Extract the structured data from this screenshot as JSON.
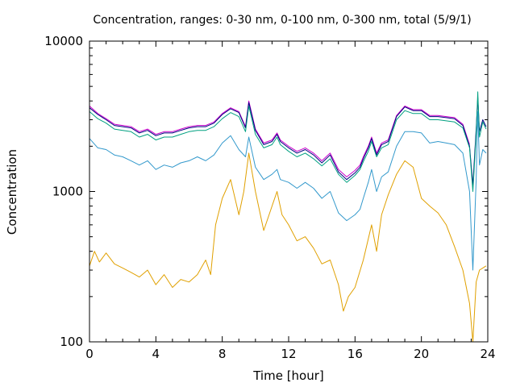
{
  "chart_data": {
    "type": "line",
    "title": "Concentration, ranges: 0-30 nm, 0-100 nm, 0-300 nm, total (5/9/1)",
    "xlabel": "Time [hour]",
    "ylabel": "Concentration",
    "xlim": [
      0,
      24
    ],
    "ylim": [
      100,
      10000
    ],
    "yscale": "log",
    "grid": false,
    "legend": "none",
    "x_ticks": [
      "0",
      "4",
      "8",
      "12",
      "16",
      "20",
      "24"
    ],
    "y_ticks": [
      "100",
      "1000",
      "10000"
    ],
    "series": [
      {
        "color": "#cc00cc",
        "points": [
          [
            0,
            3700
          ],
          [
            0.5,
            3300
          ],
          [
            1,
            3050
          ],
          [
            1.5,
            2800
          ],
          [
            2,
            2750
          ],
          [
            2.5,
            2700
          ],
          [
            3,
            2500
          ],
          [
            3.5,
            2600
          ],
          [
            4,
            2400
          ],
          [
            4.5,
            2500
          ],
          [
            5,
            2500
          ],
          [
            5.5,
            2600
          ],
          [
            6,
            2700
          ],
          [
            6.5,
            2750
          ],
          [
            7,
            2750
          ],
          [
            7.5,
            2900
          ],
          [
            8,
            3300
          ],
          [
            8.5,
            3600
          ],
          [
            9,
            3400
          ],
          [
            9.4,
            2700
          ],
          [
            9.6,
            4000
          ],
          [
            10,
            2600
          ],
          [
            10.5,
            2100
          ],
          [
            11,
            2200
          ],
          [
            11.3,
            2450
          ],
          [
            11.5,
            2200
          ],
          [
            12,
            2000
          ],
          [
            12.5,
            1850
          ],
          [
            13,
            1950
          ],
          [
            13.5,
            1800
          ],
          [
            14,
            1600
          ],
          [
            14.5,
            1800
          ],
          [
            15,
            1400
          ],
          [
            15.5,
            1250
          ],
          [
            16,
            1380
          ],
          [
            16.3,
            1500
          ],
          [
            16.5,
            1700
          ],
          [
            16.8,
            2000
          ],
          [
            17,
            2300
          ],
          [
            17.3,
            1800
          ],
          [
            17.6,
            2100
          ],
          [
            18,
            2200
          ],
          [
            18.5,
            3200
          ],
          [
            19,
            3700
          ],
          [
            19.5,
            3500
          ],
          [
            20,
            3500
          ],
          [
            20.5,
            3200
          ],
          [
            21,
            3200
          ],
          [
            21.5,
            3150
          ],
          [
            22,
            3100
          ],
          [
            22.5,
            2800
          ],
          [
            22.9,
            2050
          ]
        ]
      },
      {
        "color": "#000080",
        "points": [
          [
            0,
            3600
          ],
          [
            0.5,
            3250
          ],
          [
            1,
            3000
          ],
          [
            1.5,
            2750
          ],
          [
            2,
            2700
          ],
          [
            2.5,
            2650
          ],
          [
            3,
            2450
          ],
          [
            3.5,
            2550
          ],
          [
            4,
            2350
          ],
          [
            4.5,
            2450
          ],
          [
            5,
            2450
          ],
          [
            5.5,
            2550
          ],
          [
            6,
            2650
          ],
          [
            6.5,
            2700
          ],
          [
            7,
            2700
          ],
          [
            7.5,
            2850
          ],
          [
            8,
            3250
          ],
          [
            8.5,
            3550
          ],
          [
            9,
            3350
          ],
          [
            9.4,
            2650
          ],
          [
            9.6,
            3900
          ],
          [
            10,
            2550
          ],
          [
            10.5,
            2050
          ],
          [
            11,
            2150
          ],
          [
            11.3,
            2400
          ],
          [
            11.5,
            2150
          ],
          [
            12,
            1950
          ],
          [
            12.5,
            1800
          ],
          [
            13,
            1900
          ],
          [
            13.5,
            1750
          ],
          [
            14,
            1550
          ],
          [
            14.5,
            1750
          ],
          [
            15,
            1350
          ],
          [
            15.5,
            1200
          ],
          [
            16,
            1330
          ],
          [
            16.3,
            1450
          ],
          [
            16.5,
            1650
          ],
          [
            16.8,
            1950
          ],
          [
            17,
            2250
          ],
          [
            17.3,
            1750
          ],
          [
            17.6,
            2050
          ],
          [
            18,
            2150
          ],
          [
            18.5,
            3150
          ],
          [
            19,
            3650
          ],
          [
            19.5,
            3450
          ],
          [
            20,
            3450
          ],
          [
            20.5,
            3150
          ],
          [
            21,
            3150
          ],
          [
            21.5,
            3100
          ],
          [
            22,
            3050
          ],
          [
            22.5,
            2750
          ],
          [
            22.9,
            2000
          ],
          [
            23.1,
            1100
          ],
          [
            23.3,
            2600
          ],
          [
            23.4,
            4200
          ],
          [
            23.5,
            2500
          ],
          [
            23.7,
            3000
          ],
          [
            23.9,
            2700
          ]
        ]
      },
      {
        "color": "#00a080",
        "points": [
          [
            0,
            3400
          ],
          [
            0.5,
            3050
          ],
          [
            1,
            2850
          ],
          [
            1.5,
            2600
          ],
          [
            2,
            2550
          ],
          [
            2.5,
            2500
          ],
          [
            3,
            2300
          ],
          [
            3.5,
            2400
          ],
          [
            4,
            2200
          ],
          [
            4.5,
            2300
          ],
          [
            5,
            2300
          ],
          [
            5.5,
            2400
          ],
          [
            6,
            2500
          ],
          [
            6.5,
            2550
          ],
          [
            7,
            2550
          ],
          [
            7.5,
            2700
          ],
          [
            8,
            3050
          ],
          [
            8.5,
            3350
          ],
          [
            9,
            3150
          ],
          [
            9.4,
            2500
          ],
          [
            9.6,
            3700
          ],
          [
            10,
            2400
          ],
          [
            10.5,
            1950
          ],
          [
            11,
            2050
          ],
          [
            11.3,
            2300
          ],
          [
            11.5,
            2050
          ],
          [
            12,
            1850
          ],
          [
            12.5,
            1700
          ],
          [
            13,
            1800
          ],
          [
            13.5,
            1650
          ],
          [
            14,
            1480
          ],
          [
            14.5,
            1650
          ],
          [
            15,
            1300
          ],
          [
            15.5,
            1150
          ],
          [
            16,
            1280
          ],
          [
            16.3,
            1400
          ],
          [
            16.5,
            1580
          ],
          [
            16.8,
            1850
          ],
          [
            17,
            2150
          ],
          [
            17.3,
            1700
          ],
          [
            17.6,
            1950
          ],
          [
            18,
            2050
          ],
          [
            18.5,
            3000
          ],
          [
            19,
            3450
          ],
          [
            19.5,
            3300
          ],
          [
            20,
            3300
          ],
          [
            20.5,
            3000
          ],
          [
            21,
            3000
          ],
          [
            21.5,
            2950
          ],
          [
            22,
            2900
          ],
          [
            22.5,
            2650
          ],
          [
            22.9,
            1950
          ],
          [
            23.1,
            1000
          ],
          [
            23.3,
            2400
          ],
          [
            23.4,
            4600
          ],
          [
            23.5,
            2300
          ],
          [
            23.7,
            2900
          ],
          [
            23.9,
            2600
          ]
        ]
      },
      {
        "color": "#3399cc",
        "points": [
          [
            0,
            2250
          ],
          [
            0.5,
            1950
          ],
          [
            1,
            1900
          ],
          [
            1.5,
            1750
          ],
          [
            2,
            1700
          ],
          [
            2.5,
            1600
          ],
          [
            3,
            1500
          ],
          [
            3.5,
            1600
          ],
          [
            4,
            1400
          ],
          [
            4.5,
            1500
          ],
          [
            5,
            1450
          ],
          [
            5.5,
            1550
          ],
          [
            6,
            1600
          ],
          [
            6.5,
            1700
          ],
          [
            7,
            1600
          ],
          [
            7.5,
            1750
          ],
          [
            8,
            2100
          ],
          [
            8.5,
            2350
          ],
          [
            9,
            1900
          ],
          [
            9.4,
            1700
          ],
          [
            9.6,
            2300
          ],
          [
            10,
            1450
          ],
          [
            10.5,
            1200
          ],
          [
            11,
            1300
          ],
          [
            11.3,
            1400
          ],
          [
            11.5,
            1200
          ],
          [
            12,
            1150
          ],
          [
            12.5,
            1050
          ],
          [
            13,
            1150
          ],
          [
            13.5,
            1050
          ],
          [
            14,
            900
          ],
          [
            14.5,
            1000
          ],
          [
            15,
            720
          ],
          [
            15.5,
            640
          ],
          [
            16,
            700
          ],
          [
            16.3,
            760
          ],
          [
            16.5,
            900
          ],
          [
            16.8,
            1150
          ],
          [
            17,
            1400
          ],
          [
            17.3,
            1000
          ],
          [
            17.6,
            1250
          ],
          [
            18,
            1350
          ],
          [
            18.5,
            2000
          ],
          [
            19,
            2500
          ],
          [
            19.5,
            2500
          ],
          [
            20,
            2450
          ],
          [
            20.5,
            2100
          ],
          [
            21,
            2150
          ],
          [
            21.5,
            2100
          ],
          [
            22,
            2050
          ],
          [
            22.5,
            1800
          ],
          [
            22.9,
            1000
          ],
          [
            23.1,
            300
          ],
          [
            23.3,
            1200
          ],
          [
            23.4,
            3400
          ],
          [
            23.5,
            1500
          ],
          [
            23.7,
            1900
          ],
          [
            23.9,
            1800
          ]
        ]
      },
      {
        "color": "#e0a000",
        "points": [
          [
            0,
            320
          ],
          [
            0.3,
            400
          ],
          [
            0.6,
            340
          ],
          [
            1,
            390
          ],
          [
            1.5,
            330
          ],
          [
            2,
            310
          ],
          [
            2.5,
            290
          ],
          [
            3,
            270
          ],
          [
            3.5,
            300
          ],
          [
            4,
            240
          ],
          [
            4.5,
            280
          ],
          [
            5,
            230
          ],
          [
            5.5,
            260
          ],
          [
            6,
            250
          ],
          [
            6.5,
            280
          ],
          [
            7,
            350
          ],
          [
            7.3,
            280
          ],
          [
            7.6,
            600
          ],
          [
            8,
            900
          ],
          [
            8.5,
            1200
          ],
          [
            9,
            700
          ],
          [
            9.3,
            1000
          ],
          [
            9.6,
            1800
          ],
          [
            10,
            1000
          ],
          [
            10.5,
            550
          ],
          [
            11,
            800
          ],
          [
            11.3,
            1000
          ],
          [
            11.6,
            700
          ],
          [
            12,
            600
          ],
          [
            12.5,
            470
          ],
          [
            13,
            500
          ],
          [
            13.5,
            420
          ],
          [
            14,
            330
          ],
          [
            14.5,
            350
          ],
          [
            15,
            240
          ],
          [
            15.3,
            160
          ],
          [
            15.6,
            200
          ],
          [
            16,
            230
          ],
          [
            16.5,
            350
          ],
          [
            17,
            600
          ],
          [
            17.3,
            400
          ],
          [
            17.6,
            700
          ],
          [
            18,
            950
          ],
          [
            18.5,
            1300
          ],
          [
            19,
            1600
          ],
          [
            19.5,
            1450
          ],
          [
            20,
            900
          ],
          [
            20.5,
            800
          ],
          [
            21,
            720
          ],
          [
            21.5,
            600
          ],
          [
            22,
            430
          ],
          [
            22.5,
            300
          ],
          [
            22.9,
            180
          ],
          [
            23.1,
            100
          ],
          [
            23.3,
            250
          ],
          [
            23.5,
            300
          ],
          [
            23.7,
            310
          ],
          [
            23.9,
            320
          ]
        ]
      }
    ]
  }
}
